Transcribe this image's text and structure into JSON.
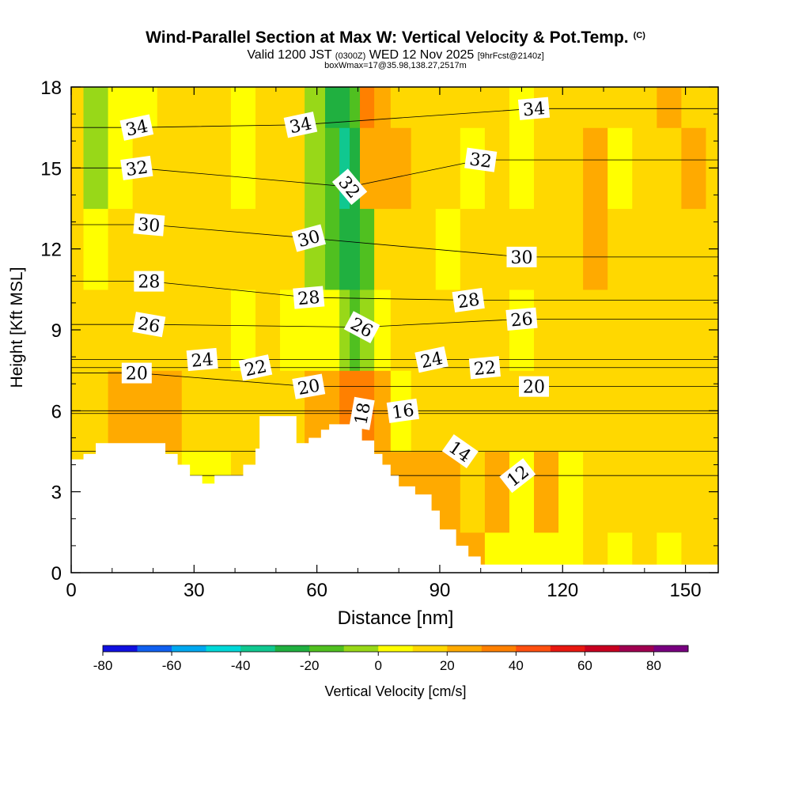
{
  "chart_data": {
    "type": "heatmap",
    "title": "Wind-Parallel Section at Max W: Vertical Velocity & Pot.Temp.",
    "title_mark": "(C)",
    "subtitle": {
      "valid": "Valid 1200 JST",
      "utc": "(0300Z)",
      "date": "WED 12 Nov 2025",
      "forecast": "[9hrFcst@2140z]"
    },
    "annotation": "boxWmax=17@35.98,138.27,2517m",
    "xlabel": "Distance [nm]",
    "ylabel": "Height [Kft MSL]",
    "xlim": [
      0,
      158
    ],
    "ylim": [
      0,
      18
    ],
    "x_ticks": [
      0,
      30,
      60,
      90,
      120,
      150
    ],
    "y_ticks": [
      0,
      3,
      6,
      9,
      12,
      15,
      18
    ],
    "fill_variable": "Vertical Velocity [cm/s]",
    "contour_variable": "Potential Temperature",
    "colorbar": {
      "label": "Vertical Velocity [cm/s]",
      "tick_labels": [
        "-80",
        "-60",
        "-40",
        "-20",
        "0",
        "20",
        "40",
        "60",
        "80"
      ],
      "colors": [
        "#1010e0",
        "#1060f0",
        "#00a8f0",
        "#00d8d8",
        "#10c890",
        "#20b040",
        "#50c020",
        "#98d818",
        "#ffff00",
        "#ffd800",
        "#ffaa00",
        "#ff8000",
        "#ff5010",
        "#e81810",
        "#c80020",
        "#a00050",
        "#780080"
      ]
    },
    "contour_labels": [
      {
        "text": "34",
        "x": 16,
        "y": 16.5,
        "angle": -12
      },
      {
        "text": "34",
        "x": 56,
        "y": 16.6,
        "angle": -12
      },
      {
        "text": "34",
        "x": 113,
        "y": 17.2,
        "angle": -5
      },
      {
        "text": "32",
        "x": 16,
        "y": 15.0,
        "angle": -8
      },
      {
        "text": "32",
        "x": 100,
        "y": 15.3,
        "angle": 8
      },
      {
        "text": "32",
        "x": 68,
        "y": 14.3,
        "angle": 50
      },
      {
        "text": "30",
        "x": 19,
        "y": 12.9,
        "angle": 5
      },
      {
        "text": "30",
        "x": 58,
        "y": 12.4,
        "angle": -15
      },
      {
        "text": "30",
        "x": 110,
        "y": 11.7,
        "angle": 0
      },
      {
        "text": "28",
        "x": 19,
        "y": 10.8,
        "angle": 0
      },
      {
        "text": "28",
        "x": 58,
        "y": 10.2,
        "angle": -5
      },
      {
        "text": "28",
        "x": 97,
        "y": 10.1,
        "angle": -8
      },
      {
        "text": "26",
        "x": 19,
        "y": 9.2,
        "angle": 10
      },
      {
        "text": "26",
        "x": 71,
        "y": 9.1,
        "angle": 28
      },
      {
        "text": "26",
        "x": 110,
        "y": 9.4,
        "angle": -5
      },
      {
        "text": "24",
        "x": 32,
        "y": 7.9,
        "angle": -5
      },
      {
        "text": "24",
        "x": 88,
        "y": 7.9,
        "angle": -12
      },
      {
        "text": "22",
        "x": 45,
        "y": 7.6,
        "angle": -12
      },
      {
        "text": "22",
        "x": 101,
        "y": 7.6,
        "angle": -5
      },
      {
        "text": "20",
        "x": 16,
        "y": 7.4,
        "angle": 0
      },
      {
        "text": "20",
        "x": 58,
        "y": 6.9,
        "angle": -10
      },
      {
        "text": "20",
        "x": 113,
        "y": 6.9,
        "angle": 0
      },
      {
        "text": "18",
        "x": 71,
        "y": 5.9,
        "angle": -80
      },
      {
        "text": "16",
        "x": 81,
        "y": 6.0,
        "angle": -8
      },
      {
        "text": "14",
        "x": 95,
        "y": 4.5,
        "angle": 35
      },
      {
        "text": "12",
        "x": 109,
        "y": 3.6,
        "angle": -38
      }
    ],
    "terrain_kft": [
      [
        0,
        4.2
      ],
      [
        3,
        4.2
      ],
      [
        3,
        4.4
      ],
      [
        6,
        4.4
      ],
      [
        6,
        4.8
      ],
      [
        23,
        4.8
      ],
      [
        23,
        4.4
      ],
      [
        26,
        4.4
      ],
      [
        26,
        4.0
      ],
      [
        29,
        4.0
      ],
      [
        29,
        3.6
      ],
      [
        32,
        3.6
      ],
      [
        32,
        3.3
      ],
      [
        35,
        3.3
      ],
      [
        35,
        3.6
      ],
      [
        42,
        3.6
      ],
      [
        42,
        4.0
      ],
      [
        45,
        4.0
      ],
      [
        45,
        4.6
      ],
      [
        46,
        4.6
      ],
      [
        46,
        5.8
      ],
      [
        55,
        5.8
      ],
      [
        55,
        4.8
      ],
      [
        58,
        4.8
      ],
      [
        58,
        5.0
      ],
      [
        61,
        5.0
      ],
      [
        61,
        5.3
      ],
      [
        63,
        5.3
      ],
      [
        63,
        5.5
      ],
      [
        71,
        5.5
      ],
      [
        71,
        4.9
      ],
      [
        74,
        4.9
      ],
      [
        74,
        4.4
      ],
      [
        76,
        4.4
      ],
      [
        76,
        4.0
      ],
      [
        78,
        4.0
      ],
      [
        78,
        3.6
      ],
      [
        80,
        3.6
      ],
      [
        80,
        3.2
      ],
      [
        84,
        3.2
      ],
      [
        84,
        2.9
      ],
      [
        88,
        2.9
      ],
      [
        88,
        2.3
      ],
      [
        90,
        2.3
      ],
      [
        90,
        1.6
      ],
      [
        94,
        1.6
      ],
      [
        94,
        1.0
      ],
      [
        97,
        1.0
      ],
      [
        97,
        0.6
      ],
      [
        100,
        0.6
      ],
      [
        100,
        0.3
      ],
      [
        158,
        0.3
      ]
    ],
    "w_field": {
      "columns_x": [
        0,
        6,
        12,
        18,
        24,
        30,
        36,
        42,
        48,
        54,
        60,
        64,
        67,
        69,
        72,
        76,
        80,
        86,
        92,
        98,
        104,
        110,
        116,
        122,
        128,
        134,
        140,
        146,
        152,
        158
      ],
      "levels_kft": [
        0,
        3,
        6,
        9,
        12,
        15,
        18
      ],
      "values_cm_s": [
        [
          8,
          8,
          8,
          8,
          8,
          8,
          8
        ],
        [
          8,
          8,
          8,
          0,
          -10,
          -20,
          -20
        ],
        [
          8,
          8,
          10,
          8,
          0,
          -5,
          -10
        ],
        [
          8,
          8,
          10,
          8,
          5,
          0,
          -5
        ],
        [
          8,
          8,
          12,
          5,
          8,
          0,
          5
        ],
        [
          -5,
          -5,
          5,
          8,
          5,
          8,
          0
        ],
        [
          8,
          -5,
          5,
          5,
          8,
          5,
          0
        ],
        [
          8,
          8,
          5,
          -5,
          8,
          -5,
          -5
        ],
        [
          8,
          8,
          5,
          8,
          5,
          0,
          5
        ],
        [
          8,
          8,
          8,
          -5,
          0,
          8,
          5
        ],
        [
          8,
          8,
          12,
          -8,
          -15,
          -15,
          -15
        ],
        [
          8,
          8,
          15,
          -10,
          -25,
          -30,
          -35
        ],
        [
          8,
          8,
          20,
          -20,
          -40,
          -50,
          -40
        ],
        [
          8,
          8,
          25,
          -25,
          -35,
          -40,
          -30
        ],
        [
          8,
          8,
          20,
          -20,
          -25,
          15,
          25
        ],
        [
          8,
          10,
          15,
          -10,
          5,
          12,
          12
        ],
        [
          8,
          12,
          -5,
          5,
          8,
          10,
          8
        ],
        [
          8,
          12,
          8,
          8,
          5,
          5,
          5
        ],
        [
          10,
          15,
          8,
          5,
          -5,
          5,
          5
        ],
        [
          12,
          8,
          5,
          5,
          5,
          -5,
          5
        ],
        [
          -5,
          12,
          8,
          8,
          8,
          5,
          8
        ],
        [
          -10,
          -5,
          8,
          -5,
          5,
          -5,
          -5
        ],
        [
          -5,
          15,
          8,
          8,
          5,
          5,
          8
        ],
        [
          -5,
          -5,
          5,
          5,
          5,
          8,
          5
        ],
        [
          8,
          5,
          5,
          5,
          12,
          12,
          5
        ],
        [
          -5,
          8,
          5,
          8,
          8,
          -5,
          5
        ],
        [
          8,
          8,
          5,
          5,
          5,
          5,
          8
        ],
        [
          -5,
          5,
          5,
          8,
          5,
          8,
          12
        ],
        [
          8,
          5,
          5,
          5,
          8,
          12,
          5
        ],
        [
          5,
          5,
          5,
          5,
          5,
          5,
          5
        ]
      ]
    }
  }
}
